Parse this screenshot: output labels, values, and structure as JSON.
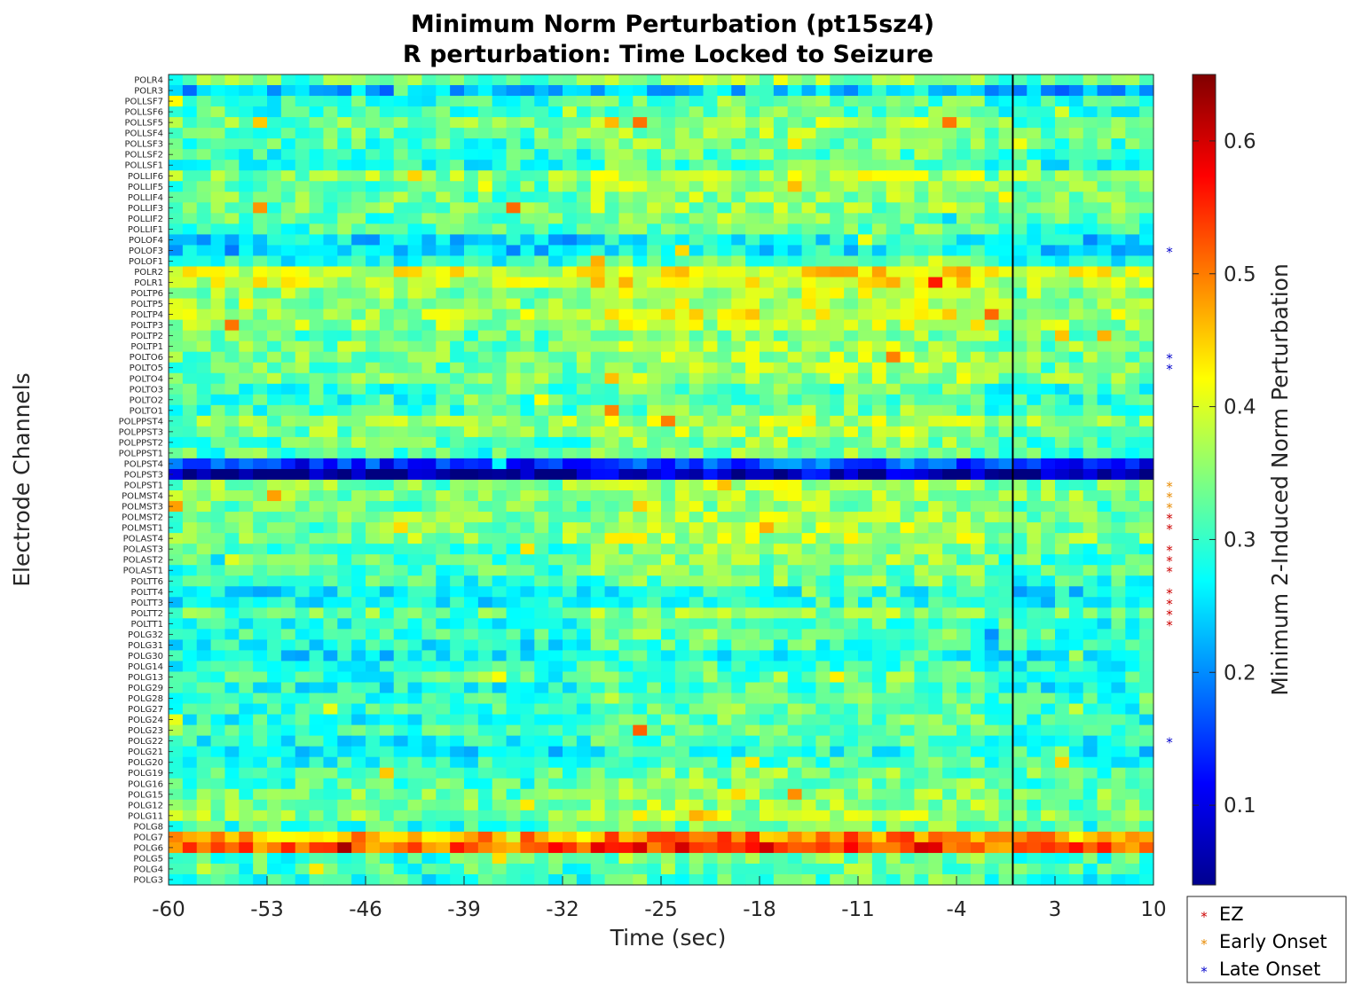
{
  "chart_data": {
    "type": "heatmap",
    "title": "Minimum Norm Perturbation (pt15sz4)",
    "subtitle": "R perturbation:  Time Locked to Seizure",
    "xlabel": "Time (sec)",
    "ylabel": "Electrode Channels",
    "colorbar_label": "Minimum 2-Induced Norm Perturbation",
    "colormap": "jet",
    "xlim": [
      -60,
      10
    ],
    "xticks": [
      -60,
      -53,
      -46,
      -39,
      -32,
      -25,
      -18,
      -11,
      -4,
      3,
      10
    ],
    "clim": [
      0.04,
      0.65
    ],
    "colorbar_ticks": [
      0.1,
      0.2,
      0.3,
      0.4,
      0.5,
      0.6
    ],
    "seizure_onset_line_x": 0,
    "n_time_windows": 70,
    "channels": [
      "POLR4",
      "POLR3",
      "POLLSF7",
      "POLLSF6",
      "POLLSF5",
      "POLLSF4",
      "POLLSF3",
      "POLLSF2",
      "POLLSF1",
      "POLLIF6",
      "POLLIF5",
      "POLLIF4",
      "POLLIF3",
      "POLLIF2",
      "POLLIF1",
      "POLOF4",
      "POLOF3",
      "POLOF1",
      "POLR2",
      "POLR1",
      "POLTP6",
      "POLTP5",
      "POLTP4",
      "POLTP3",
      "POLTP2",
      "POLTP1",
      "POLTO6",
      "POLTO5",
      "POLTO4",
      "POLTO3",
      "POLTO2",
      "POLTO1",
      "POLPPST4",
      "POLPPST3",
      "POLPPST2",
      "POLPPST1",
      "POLPST4",
      "POLPST3",
      "POLPST1",
      "POLMST4",
      "POLMST3",
      "POLMST2",
      "POLMST1",
      "POLAST4",
      "POLAST3",
      "POLAST2",
      "POLAST1",
      "POLTT6",
      "POLTT4",
      "POLTT3",
      "POLTT2",
      "POLTT1",
      "POLG32",
      "POLG31",
      "POLG30",
      "POLG14",
      "POLG13",
      "POLG29",
      "POLG28",
      "POLG27",
      "POLG24",
      "POLG23",
      "POLG22",
      "POLG21",
      "POLG20",
      "POLG19",
      "POLG16",
      "POLG15",
      "POLG12",
      "POLG11",
      "POLG8",
      "POLG7",
      "POLG6",
      "POLG5",
      "POLG4",
      "POLG3"
    ],
    "channel_base_values": [
      0.33,
      0.22,
      0.3,
      0.3,
      0.33,
      0.33,
      0.31,
      0.3,
      0.29,
      0.35,
      0.33,
      0.33,
      0.33,
      0.32,
      0.31,
      0.25,
      0.24,
      0.29,
      0.4,
      0.39,
      0.35,
      0.35,
      0.37,
      0.36,
      0.33,
      0.34,
      0.34,
      0.33,
      0.34,
      0.3,
      0.3,
      0.31,
      0.35,
      0.34,
      0.32,
      0.31,
      0.14,
      0.05,
      0.34,
      0.34,
      0.33,
      0.34,
      0.34,
      0.35,
      0.32,
      0.32,
      0.31,
      0.3,
      0.26,
      0.27,
      0.32,
      0.29,
      0.3,
      0.28,
      0.26,
      0.29,
      0.3,
      0.28,
      0.31,
      0.3,
      0.29,
      0.31,
      0.28,
      0.26,
      0.29,
      0.31,
      0.31,
      0.33,
      0.33,
      0.35,
      0.3,
      0.47,
      0.52,
      0.31,
      0.31,
      0.29
    ],
    "late_window_boost": 0.03,
    "markers": {
      "EZ": [
        "POLMST2",
        "POLMST1",
        "POLAST3",
        "POLAST2",
        "POLAST1",
        "POLTT4",
        "POLTT3",
        "POLTT2",
        "POLTT1"
      ],
      "Early Onset": [
        "POLPST1",
        "POLMST4",
        "POLMST3"
      ],
      "Late Onset": [
        "POLOF3",
        "POLTO6",
        "POLTO5",
        "POLG22"
      ]
    },
    "marker_symbol": "*",
    "legend": [
      {
        "label": "EZ",
        "color": "#cc0000"
      },
      {
        "label": "Early Onset",
        "color": "#e88a00"
      },
      {
        "label": "Late Onset",
        "color": "#0000cc"
      }
    ],
    "legend_position": "bottom-right",
    "channel_label_colors": {
      "EZ": "#ff0000",
      "Early Onset": "#ff8c00",
      "Late Onset": "#0000ff",
      "default": "#262626"
    }
  }
}
